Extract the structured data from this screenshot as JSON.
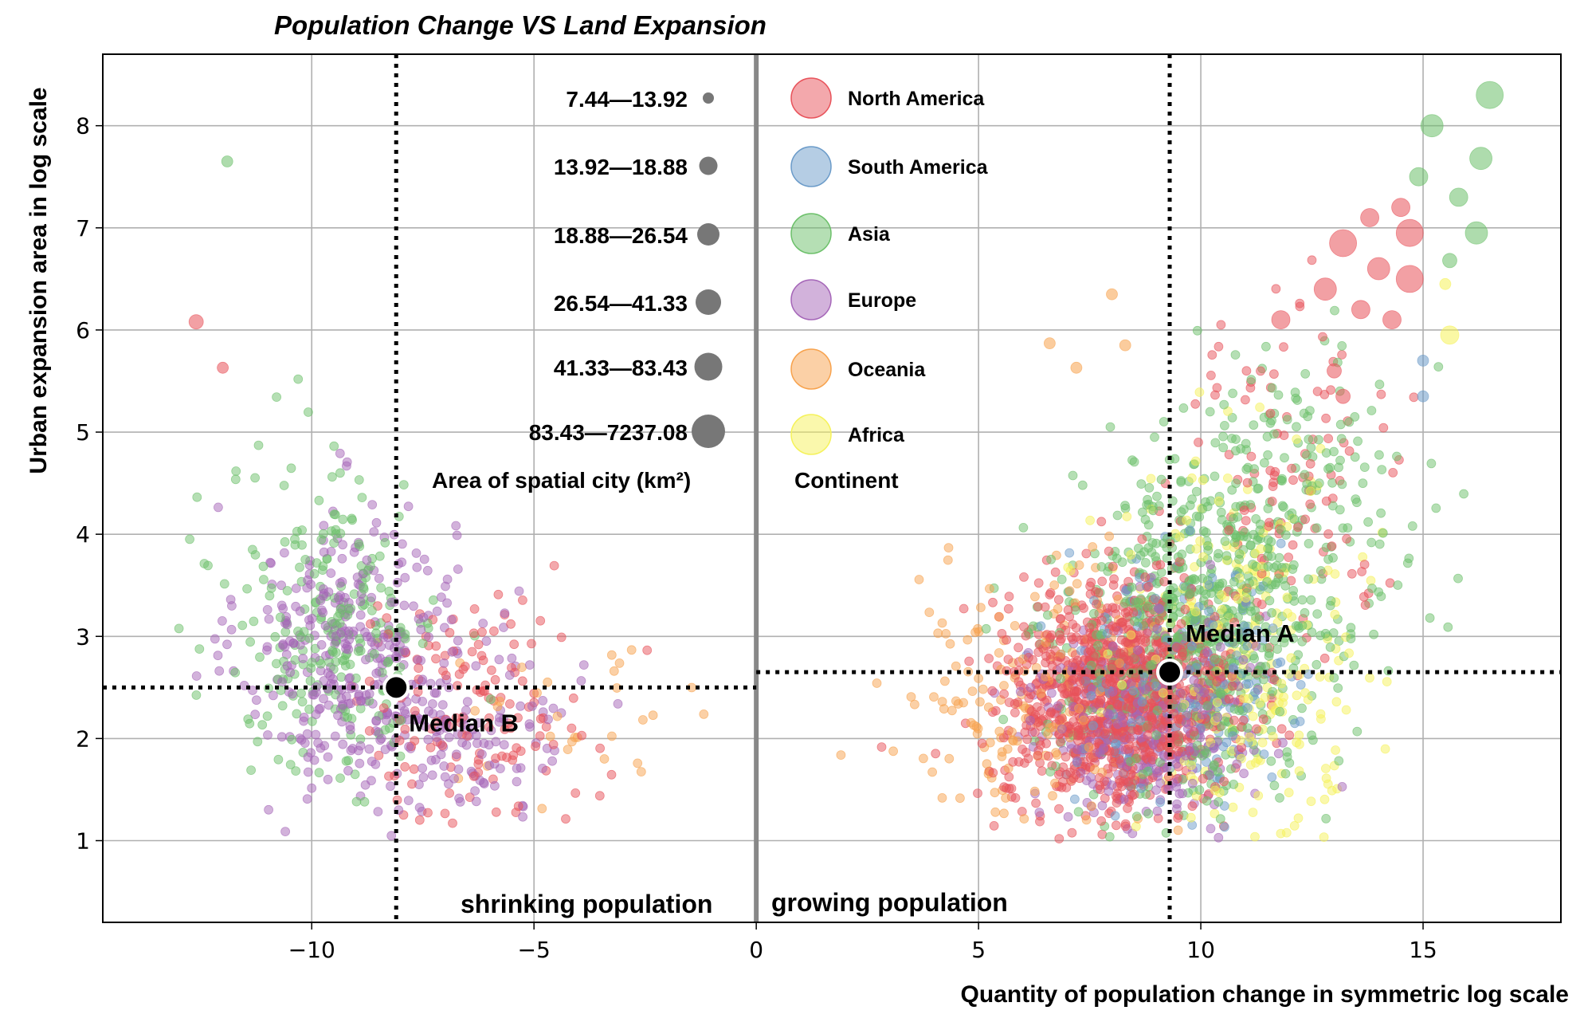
{
  "chart_data": {
    "type": "scatter",
    "title": "Population Change VS Land Expansion",
    "xlabel": "Quantity of population change in symmetric log scale",
    "ylabel": "Urban expansion area in log scale",
    "xlim": [
      -14.7,
      18.1
    ],
    "ylim": [
      0.2,
      8.7
    ],
    "x_ticks": [
      -10,
      -5,
      0,
      5,
      10,
      15
    ],
    "x_tick_labels": [
      "−10",
      "−5",
      "0",
      "5",
      "10",
      "15"
    ],
    "y_ticks": [
      1,
      2,
      3,
      4,
      5,
      6,
      7,
      8
    ],
    "y_tick_labels": [
      "1",
      "2",
      "3",
      "4",
      "5",
      "6",
      "7",
      "8"
    ],
    "grid": true,
    "legend_size": {
      "title": "Area of spatial city (km²)",
      "entries": [
        "7.44—13.92",
        "13.92—18.88",
        "18.88—26.54",
        "26.54—41.33",
        "41.33—83.43",
        "83.43—7237.08"
      ],
      "color": "#777777"
    },
    "legend_continent": {
      "title": "Continent",
      "entries": [
        {
          "name": "North America",
          "color": "#e8525a"
        },
        {
          "name": "South America",
          "color": "#6b9bc9"
        },
        {
          "name": "Asia",
          "color": "#6cc06a"
        },
        {
          "name": "Europe",
          "color": "#a566b8"
        },
        {
          "name": "Oceania",
          "color": "#f7a24d"
        },
        {
          "name": "Africa",
          "color": "#f5f25a"
        }
      ]
    },
    "medians": [
      {
        "name": "Median A",
        "x": 9.3,
        "y": 2.65
      },
      {
        "name": "Median B",
        "x": -8.1,
        "y": 2.5
      }
    ],
    "annotations": {
      "left": "shrinking population",
      "right": "growing population"
    },
    "clusters": [
      {
        "continent": "Europe",
        "n": 300,
        "cx": -9.2,
        "sx": 1.2,
        "cy": 2.9,
        "sy": 0.7
      },
      {
        "continent": "Asia",
        "n": 240,
        "cx": -9.5,
        "sx": 1.2,
        "cy": 3.1,
        "sy": 0.8
      },
      {
        "continent": "North America",
        "n": 140,
        "cx": -6.5,
        "sx": 1.4,
        "cy": 2.3,
        "sy": 0.55
      },
      {
        "continent": "Europe",
        "n": 160,
        "cx": -6.8,
        "sx": 1.3,
        "cy": 2.2,
        "sy": 0.5
      },
      {
        "continent": "Oceania",
        "n": 30,
        "cx": -4.0,
        "sx": 1.8,
        "cy": 2.1,
        "sy": 0.5
      },
      {
        "continent": "North America",
        "n": 1100,
        "cx": 8.2,
        "sx": 1.3,
        "cy": 2.4,
        "sy": 0.55
      },
      {
        "continent": "Asia",
        "n": 650,
        "cx": 9.8,
        "sx": 1.4,
        "cy": 3.0,
        "sy": 0.8
      },
      {
        "continent": "Europe",
        "n": 380,
        "cx": 8.7,
        "sx": 1.2,
        "cy": 2.2,
        "sy": 0.5
      },
      {
        "continent": "South America",
        "n": 220,
        "cx": 9.4,
        "sx": 1.2,
        "cy": 2.6,
        "sy": 0.6
      },
      {
        "continent": "Oceania",
        "n": 170,
        "cx": 6.3,
        "sx": 1.5,
        "cy": 2.4,
        "sy": 0.6
      },
      {
        "continent": "Africa",
        "n": 260,
        "cx": 11.0,
        "sx": 1.4,
        "cy": 2.9,
        "sy": 0.9
      },
      {
        "continent": "Asia",
        "n": 200,
        "cx": 12.2,
        "sx": 1.4,
        "cy": 4.3,
        "sy": 0.8
      },
      {
        "continent": "North America",
        "n": 110,
        "cx": 12.0,
        "sx": 1.2,
        "cy": 4.6,
        "sy": 0.7
      }
    ],
    "highlighted_points": [
      {
        "x": 16.5,
        "y": 8.3,
        "size": 6,
        "continent": "Asia"
      },
      {
        "x": 15.2,
        "y": 8.0,
        "size": 5,
        "continent": "Asia"
      },
      {
        "x": 16.3,
        "y": 7.68,
        "size": 5,
        "continent": "Asia"
      },
      {
        "x": 14.9,
        "y": 7.5,
        "size": 4,
        "continent": "Asia"
      },
      {
        "x": 15.8,
        "y": 7.3,
        "size": 4,
        "continent": "Asia"
      },
      {
        "x": 16.2,
        "y": 6.95,
        "size": 5,
        "continent": "Asia"
      },
      {
        "x": 15.6,
        "y": 6.68,
        "size": 3,
        "continent": "Asia"
      },
      {
        "x": 14.7,
        "y": 6.95,
        "size": 6,
        "continent": "North America"
      },
      {
        "x": 13.2,
        "y": 6.85,
        "size": 6,
        "continent": "North America"
      },
      {
        "x": 13.8,
        "y": 7.1,
        "size": 4,
        "continent": "North America"
      },
      {
        "x": 14.5,
        "y": 7.2,
        "size": 4,
        "continent": "North America"
      },
      {
        "x": 14.7,
        "y": 6.5,
        "size": 6,
        "continent": "North America"
      },
      {
        "x": 14.0,
        "y": 6.6,
        "size": 5,
        "continent": "North America"
      },
      {
        "x": 12.8,
        "y": 6.4,
        "size": 5,
        "continent": "North America"
      },
      {
        "x": 13.6,
        "y": 6.2,
        "size": 4,
        "continent": "North America"
      },
      {
        "x": 11.8,
        "y": 6.1,
        "size": 4,
        "continent": "North America"
      },
      {
        "x": 14.3,
        "y": 6.1,
        "size": 4,
        "continent": "North America"
      },
      {
        "x": 13.0,
        "y": 5.6,
        "size": 3,
        "continent": "North America"
      },
      {
        "x": 13.2,
        "y": 5.35,
        "size": 3,
        "continent": "North America"
      },
      {
        "x": 15.6,
        "y": 5.95,
        "size": 4,
        "continent": "Africa"
      },
      {
        "x": 15.5,
        "y": 6.45,
        "size": 2,
        "continent": "Africa"
      },
      {
        "x": 15.0,
        "y": 5.7,
        "size": 2,
        "continent": "South America"
      },
      {
        "x": 15.0,
        "y": 5.35,
        "size": 2,
        "continent": "South America"
      },
      {
        "x": 8.0,
        "y": 6.35,
        "size": 2,
        "continent": "Oceania"
      },
      {
        "x": 6.6,
        "y": 5.87,
        "size": 2,
        "continent": "Oceania"
      },
      {
        "x": 8.3,
        "y": 5.85,
        "size": 2,
        "continent": "Oceania"
      },
      {
        "x": 7.2,
        "y": 5.63,
        "size": 2,
        "continent": "Oceania"
      },
      {
        "x": -11.9,
        "y": 7.65,
        "size": 2,
        "continent": "Asia"
      },
      {
        "x": -12.6,
        "y": 6.08,
        "size": 3,
        "continent": "North America"
      },
      {
        "x": -12.0,
        "y": 5.63,
        "size": 2,
        "continent": "North America"
      }
    ]
  }
}
